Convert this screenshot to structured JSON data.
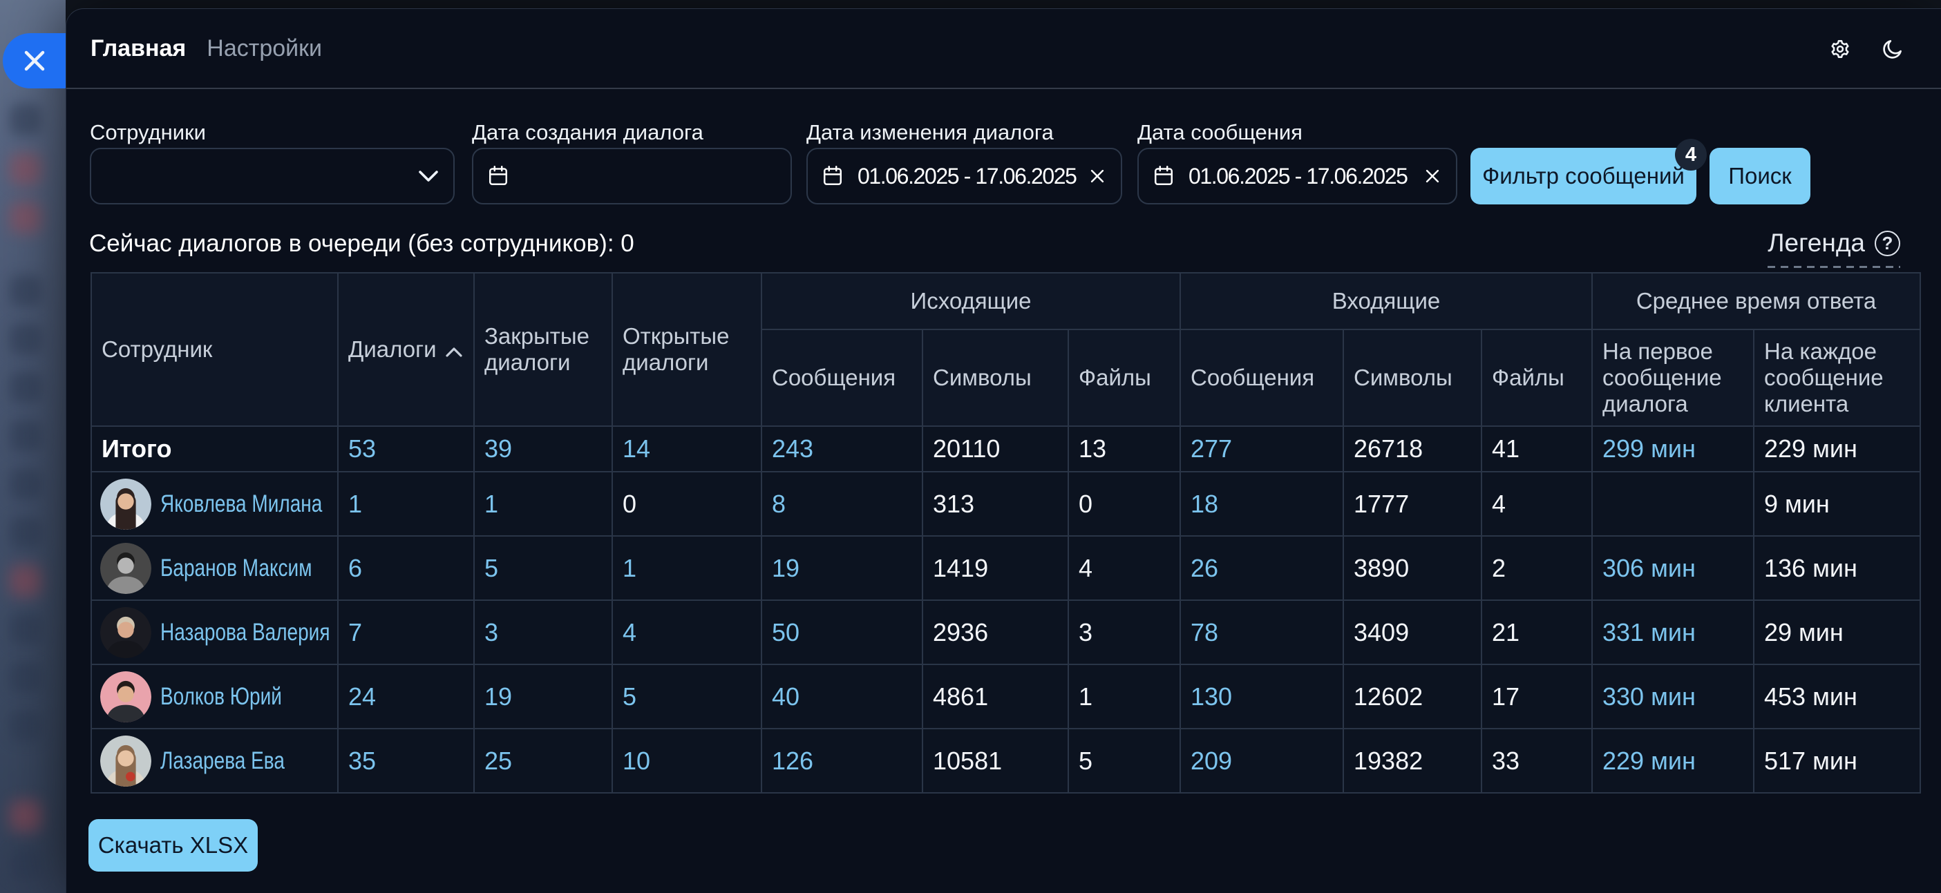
{
  "nav": {
    "tabs": [
      {
        "label": "Главная"
      },
      {
        "label": "Настройки"
      }
    ]
  },
  "filters": {
    "employees": {
      "label": "Сотрудники",
      "value": ""
    },
    "date_created": {
      "label": "Дата создания диалога",
      "value": ""
    },
    "date_modified": {
      "label": "Дата изменения диалога",
      "value": "01.06.2025 - 17.06.2025"
    },
    "date_message": {
      "label": "Дата сообщения",
      "value": "01.06.2025 - 17.06.2025"
    },
    "filter_messages_button": {
      "label": "Фильтр сообщений",
      "badge": "4"
    },
    "search_button": {
      "label": "Поиск"
    }
  },
  "queue_line": "Сейчас диалогов в очереди (без сотрудников): 0",
  "legend": {
    "label": "Легенда",
    "help_icon": "question-circle"
  },
  "icons": {
    "close": "x",
    "settings": "gear",
    "theme": "moon",
    "select": "chevron-down",
    "calendar": "calendar",
    "clear": "x",
    "sort": "chevron-up"
  },
  "table": {
    "headers": {
      "employee": "Сотрудник",
      "dialogs": "Диалоги",
      "closed": "Закрытые диалоги",
      "open": "Открытые диалоги",
      "outgoing": "Исходящие",
      "incoming": "Входящие",
      "avg_reply": "Среднее время ответа",
      "messages": "Сообщения",
      "symbols": "Символы",
      "files": "Файлы",
      "first_message": "На первое сообщение диалога",
      "each_message": "На каждое сообщение клиента"
    },
    "total_row": {
      "label": "Итого",
      "cells": [
        {
          "t": "53",
          "link": true
        },
        {
          "t": "39",
          "link": true
        },
        {
          "t": "14",
          "link": true
        },
        {
          "t": "243",
          "link": true
        },
        {
          "t": "20110",
          "link": false
        },
        {
          "t": "13",
          "link": false
        },
        {
          "t": "277",
          "link": true
        },
        {
          "t": "26718",
          "link": false
        },
        {
          "t": "41",
          "link": false
        },
        {
          "t": "299 мин",
          "link": true
        },
        {
          "t": "229 мин",
          "link": false
        }
      ]
    },
    "rows": [
      {
        "name": "Яковлева Милана",
        "avatar": {
          "bg": "#b9c9d6",
          "hair": "#2e2220",
          "skin": "#e3b898",
          "shirt": "#f2f3f4",
          "accent": "",
          "long": true
        },
        "cells": [
          {
            "t": "1",
            "link": true
          },
          {
            "t": "1",
            "link": true
          },
          {
            "t": "0",
            "link": false
          },
          {
            "t": "8",
            "link": true
          },
          {
            "t": "313",
            "link": false
          },
          {
            "t": "0",
            "link": false
          },
          {
            "t": "18",
            "link": true
          },
          {
            "t": "1777",
            "link": false
          },
          {
            "t": "4",
            "link": false
          },
          {
            "t": "",
            "link": true
          },
          {
            "t": "9 мин",
            "link": false
          }
        ]
      },
      {
        "name": "Баранов Максим",
        "avatar": {
          "bg": "#474747",
          "hair": "#1c1c1c",
          "skin": "#b5b5b5",
          "shirt": "#8d8d8d",
          "accent": ""
        },
        "cells": [
          {
            "t": "6",
            "link": true
          },
          {
            "t": "5",
            "link": true
          },
          {
            "t": "1",
            "link": true
          },
          {
            "t": "19",
            "link": true
          },
          {
            "t": "1419",
            "link": false
          },
          {
            "t": "4",
            "link": false
          },
          {
            "t": "26",
            "link": true
          },
          {
            "t": "3890",
            "link": false
          },
          {
            "t": "2",
            "link": false
          },
          {
            "t": "306 мин",
            "link": true
          },
          {
            "t": "136 мин",
            "link": false
          }
        ]
      },
      {
        "name": "Назарова Валерия",
        "avatar": {
          "bg": "#1a1b22",
          "hair": "#cfc3ae",
          "skin": "#d9a98c",
          "shirt": "#15161c",
          "accent": ""
        },
        "cells": [
          {
            "t": "7",
            "link": true
          },
          {
            "t": "3",
            "link": true
          },
          {
            "t": "4",
            "link": true
          },
          {
            "t": "50",
            "link": true
          },
          {
            "t": "2936",
            "link": false
          },
          {
            "t": "3",
            "link": false
          },
          {
            "t": "78",
            "link": true
          },
          {
            "t": "3409",
            "link": false
          },
          {
            "t": "21",
            "link": false
          },
          {
            "t": "331 мин",
            "link": true
          },
          {
            "t": "29 мин",
            "link": false
          }
        ]
      },
      {
        "name": "Волков Юрий",
        "avatar": {
          "bg": "#e9a3ac",
          "hair": "#241d1a",
          "skin": "#e0b190",
          "shirt": "#2a2d33",
          "accent": ""
        },
        "cells": [
          {
            "t": "24",
            "link": true
          },
          {
            "t": "19",
            "link": true
          },
          {
            "t": "5",
            "link": true
          },
          {
            "t": "40",
            "link": true
          },
          {
            "t": "4861",
            "link": false
          },
          {
            "t": "1",
            "link": false
          },
          {
            "t": "130",
            "link": true
          },
          {
            "t": "12602",
            "link": false
          },
          {
            "t": "17",
            "link": false
          },
          {
            "t": "330 мин",
            "link": true
          },
          {
            "t": "453 мин",
            "link": false
          }
        ]
      },
      {
        "name": "Лазарева Ева",
        "avatar": {
          "bg": "#c5cccd",
          "hair": "#8a6a4f",
          "skin": "#e7c3a4",
          "shirt": "#ddd6c9",
          "accent": "#c0392b",
          "long": true
        },
        "cells": [
          {
            "t": "35",
            "link": true
          },
          {
            "t": "25",
            "link": true
          },
          {
            "t": "10",
            "link": true
          },
          {
            "t": "126",
            "link": true
          },
          {
            "t": "10581",
            "link": false
          },
          {
            "t": "5",
            "link": false
          },
          {
            "t": "209",
            "link": true
          },
          {
            "t": "19382",
            "link": false
          },
          {
            "t": "33",
            "link": false
          },
          {
            "t": "229 мин",
            "link": true
          },
          {
            "t": "517 мин",
            "link": false
          }
        ]
      }
    ]
  },
  "download_button": {
    "label": "Скачать XLSX"
  },
  "colors": {
    "close_button_blue": "#1f6ff2",
    "action_button_blue": "#7ed0f7",
    "link_blue": "#7cc4ee",
    "panel_background": "#0a0f1b",
    "table_border": "#2a3547"
  }
}
